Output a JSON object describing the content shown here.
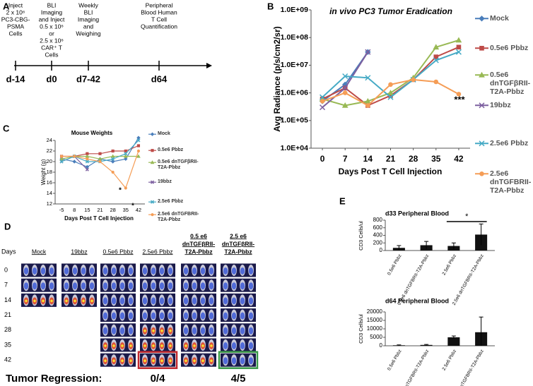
{
  "panel_labels": [
    "A",
    "B",
    "C",
    "D",
    "E"
  ],
  "timeline": {
    "events": [
      {
        "lines": [
          "Inject",
          "2 x 10⁶",
          "PC3-CBG-",
          "PSMA",
          "Cells"
        ],
        "time": "d-14"
      },
      {
        "lines": [
          "BLI",
          "Imaging",
          "and Inject",
          "0.5 x 10⁶",
          "or",
          "2.5 x 10⁶",
          "CAR⁺ T",
          "Cells"
        ],
        "time": "d0"
      },
      {
        "lines": [
          "Weekly",
          "BLI",
          "Imaging",
          "and",
          "Weighing"
        ],
        "time": "d7-42"
      },
      {
        "lines": [
          "Peripheral",
          "Blood Human",
          "T Cell",
          "Quantification"
        ],
        "time": "d64"
      }
    ]
  },
  "chart_data": [
    {
      "type": "line",
      "title": "in vivo PC3 Tumor Eradication",
      "y_label": "Avg Radiance (p/s/cm2/sr)",
      "x_label": "Days Post T Cell Injection",
      "log_y": true,
      "x": [
        0,
        7,
        14,
        21,
        28,
        35,
        42
      ],
      "xlim": [
        -3.5,
        45.5
      ],
      "xticks": [
        0,
        7,
        14,
        21,
        28,
        35,
        42
      ],
      "ylim": [
        10000,
        1000000000
      ],
      "yticks": [
        {
          "value": 10000,
          "label": "1.0E+04"
        },
        {
          "value": 100000,
          "label": "1.0E+05"
        },
        {
          "value": 1000000,
          "label": "1.0E+06"
        },
        {
          "value": 10000000,
          "label": "1.0E+07"
        },
        {
          "value": 100000000,
          "label": "1.0E+08"
        },
        {
          "value": 1000000000,
          "label": "1.0E+09"
        }
      ],
      "grid": false,
      "annotations": [
        "***"
      ],
      "series": [
        {
          "name": "Mock",
          "color": "#4a7ebb",
          "marker": "diamond",
          "values": [
            500000,
            2000000,
            30000000,
            null,
            null,
            null,
            null
          ]
        },
        {
          "name": "0.5e6 Pbbz",
          "color": "#be4b48",
          "marker": "square",
          "values": [
            600000,
            1500000,
            350000,
            800000,
            3000000,
            20000000,
            45000000
          ]
        },
        {
          "name": "0.5e6 dnTGFβRII-T2A-Pbbz",
          "color": "#98b954",
          "marker": "triangle",
          "values": [
            600000,
            350000,
            500000,
            1000000,
            3500000,
            45000000,
            80000000
          ]
        },
        {
          "name": "19bbz",
          "color": "#7d60a0",
          "marker": "x",
          "values": [
            300000,
            1500000,
            30000000,
            null,
            null,
            null,
            null
          ]
        },
        {
          "name": "2.5e6 Pbbz",
          "color": "#46aac5",
          "marker": "x",
          "values": [
            700000,
            4000000,
            3500000,
            700000,
            3000000,
            15000000,
            30000000
          ]
        },
        {
          "name": "2.5e6 dnTGFBRII-T2A-Pbbz",
          "color": "#f59d56",
          "marker": "circle",
          "values": [
            500000,
            1000000,
            350000,
            2000000,
            3000000,
            2500000,
            900000
          ]
        }
      ]
    },
    {
      "type": "line",
      "title": "Mouse Weights",
      "y_label": "Weight (g)",
      "x_label": "Days Post T Cell Injection",
      "categories": [
        "-5",
        "8",
        "15",
        "21",
        "28",
        "35",
        "42"
      ],
      "ylim": [
        12,
        24
      ],
      "yticks": [
        12,
        14,
        16,
        18,
        20,
        22,
        24
      ],
      "grid": false,
      "annotations": [
        "*",
        "*"
      ],
      "series": [
        {
          "name": "Mock",
          "color": "#4a7ebb",
          "marker": "diamond",
          "values": [
            20.5,
            20,
            19,
            20.5,
            20,
            20.5,
            24.5
          ]
        },
        {
          "name": "0.5e6 Pbbz",
          "color": "#be4b48",
          "marker": "square",
          "values": [
            21,
            21,
            21.5,
            21.5,
            22,
            22,
            23
          ]
        },
        {
          "name": "0.5e6 dnTGFβRII-T2A-Pbbz",
          "color": "#98b954",
          "marker": "triangle",
          "values": [
            20.5,
            21,
            21,
            20.5,
            21,
            21,
            21
          ]
        },
        {
          "name": "19bbz",
          "color": "#7d60a0",
          "marker": "x",
          "values": [
            20,
            21,
            18.5,
            null,
            null,
            null,
            null
          ]
        },
        {
          "name": "2.5e6 Pbbz",
          "color": "#46aac5",
          "marker": "x",
          "values": [
            20,
            21,
            20,
            20,
            20.5,
            21.5,
            24
          ]
        },
        {
          "name": "2.5e6 dnTGFBRII-T2A-Pbbz",
          "color": "#f59d56",
          "marker": "circle",
          "values": [
            21,
            21,
            20.5,
            20,
            18,
            15,
            22
          ]
        }
      ]
    },
    {
      "type": "bar",
      "title": "d33 Peripheral Blood",
      "y_label": "CD3 Cells/ul",
      "categories": [
        "0.5e6 Pbbz",
        "0.5e6 dnTGFBRII-T2A-Pbbz",
        "2.5e6 Pbbz",
        "2.5e6 dnTGFBRII-T2A-Pbbz"
      ],
      "values": [
        70,
        140,
        120,
        420
      ],
      "errors": [
        60,
        100,
        80,
        280
      ],
      "color": "#111111",
      "ylim": [
        0,
        800
      ],
      "yticks": [
        0,
        200,
        400,
        600,
        800
      ],
      "annotations": [
        "*"
      ]
    },
    {
      "type": "bar",
      "title": "d64 Peripheral Blood",
      "y_label": "CD3 Cells/ul",
      "categories": [
        "0.5e6 Pbbz",
        "0.5e6 dnTGFBRII-T2A-Pbbz",
        "2.5e6 Pbbz",
        "2.5e6 dnTGFBRII-T2A-Pbbz"
      ],
      "values": [
        300,
        500,
        5000,
        8000
      ],
      "errors": [
        200,
        300,
        800,
        9000
      ],
      "color": "#111111",
      "ylim": [
        0,
        20000
      ],
      "yticks": [
        0,
        5000,
        10000,
        15000,
        20000
      ]
    }
  ],
  "imaging": {
    "row_header": "Days",
    "days": [
      "0",
      "7",
      "14",
      "21",
      "28",
      "35",
      "42"
    ],
    "columns": [
      {
        "lines": [
          "Mock"
        ]
      },
      {
        "lines": [
          "19bbz"
        ]
      },
      {
        "lines": [
          "0.5e6 Pbbz"
        ]
      },
      {
        "lines": [
          "2.5e6 Pbbz"
        ]
      },
      {
        "lines": [
          "0.5 e6",
          "dnTGFβRII-",
          "T2A-Pbbz"
        ]
      },
      {
        "lines": [
          "2.5 e6",
          "dnTGFβRII-",
          "T2A-Pbbz"
        ]
      }
    ],
    "regression_label": "Tumor Regression:",
    "regression_results": [
      "0/4",
      "4/5"
    ]
  }
}
